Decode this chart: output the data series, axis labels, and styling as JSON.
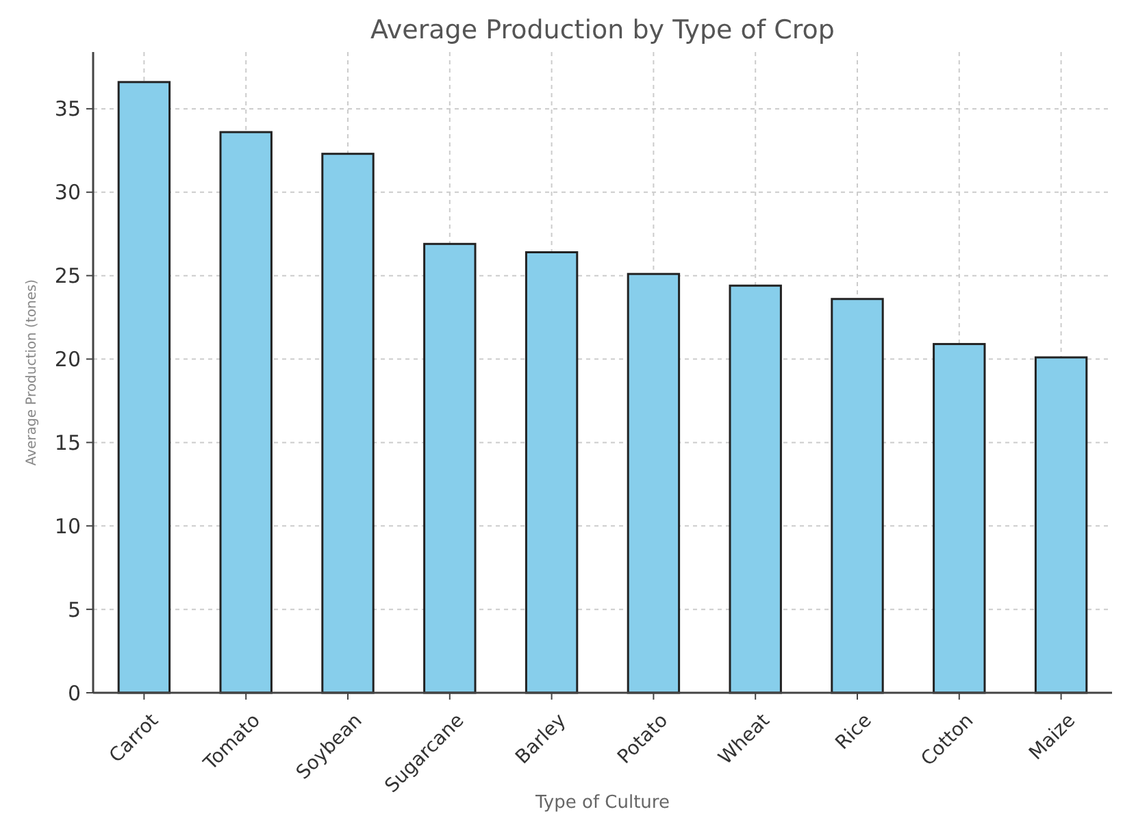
{
  "chart_data": {
    "type": "bar",
    "title": "Average Production by Type of Crop",
    "xlabel": "Type of Culture",
    "ylabel": "Average Production (tones)",
    "categories": [
      "Carrot",
      "Tomato",
      "Soybean",
      "Sugarcane",
      "Barley",
      "Potato",
      "Wheat",
      "Rice",
      "Cotton",
      "Maize"
    ],
    "values": [
      36.6,
      33.6,
      32.3,
      26.9,
      26.4,
      25.1,
      24.4,
      23.6,
      20.9,
      20.1
    ],
    "color": "#87ceeb",
    "ylim": [
      0,
      38.4
    ],
    "yticks": [
      0,
      5,
      10,
      15,
      20,
      25,
      30,
      35
    ],
    "grid": true
  }
}
